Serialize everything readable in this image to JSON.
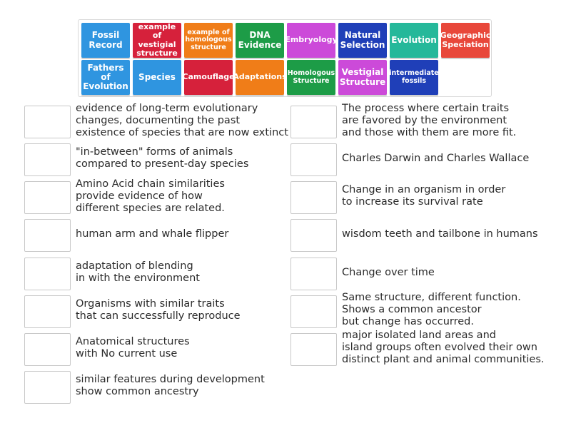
{
  "tiles": [
    {
      "label": "Fossil\nRecord",
      "color": "#2f95e0"
    },
    {
      "label": "example\nof vestigial\nstructure",
      "color": "#d6213b"
    },
    {
      "label": "example of\nhomologous\nstructure",
      "color": "#f07d18"
    },
    {
      "label": "DNA\nEvidence",
      "color": "#1d9c47"
    },
    {
      "label": "Embryology",
      "color": "#cc4ad9"
    },
    {
      "label": "Natural\nSelection",
      "color": "#1f3fb8"
    },
    {
      "label": "Evolution",
      "color": "#25b89a"
    },
    {
      "label": "Geographic\nSpeciation",
      "color": "#e8473a"
    },
    {
      "label": "Fathers\nof\nEvolution",
      "color": "#2f95e0"
    },
    {
      "label": "Species",
      "color": "#2f95e0"
    },
    {
      "label": "Camouflage",
      "color": "#d6213b"
    },
    {
      "label": "Adaptations",
      "color": "#f07d18"
    },
    {
      "label": "Homologous\nStructure",
      "color": "#1d9c47"
    },
    {
      "label": "Vestigial\nStructure",
      "color": "#cc4ad9"
    },
    {
      "label": "intermediate\nfossils",
      "color": "#1f3fb8"
    }
  ],
  "left_clues": [
    "evidence of long-term evolutionary\nchanges, documenting the past\nexistence of species that are now extinct",
    "\"in-between\" forms of animals\ncompared to present-day species",
    "Amino Acid chain similarities\nprovide evidence of how\ndifferent species are related.",
    "human arm and whale flipper",
    "adaptation of blending\nin with the environment",
    "Organisms with similar traits\nthat can successfully reproduce",
    "Anatomical structures\nwith No current use",
    "similar features during development\nshow common ancestry"
  ],
  "right_clues": [
    "The process where certain traits\nare favored by the environment\nand those with them are more fit.",
    "Charles Darwin and Charles Wallace",
    "Change in an organism in order\nto increase its survival rate",
    "wisdom teeth and tailbone in humans",
    "Change over time",
    "Same structure, different function.\nShows a common ancestor\nbut change has occurred.",
    "major isolated land areas and\nisland groups often evolved their own\ndistinct plant and animal communities."
  ]
}
